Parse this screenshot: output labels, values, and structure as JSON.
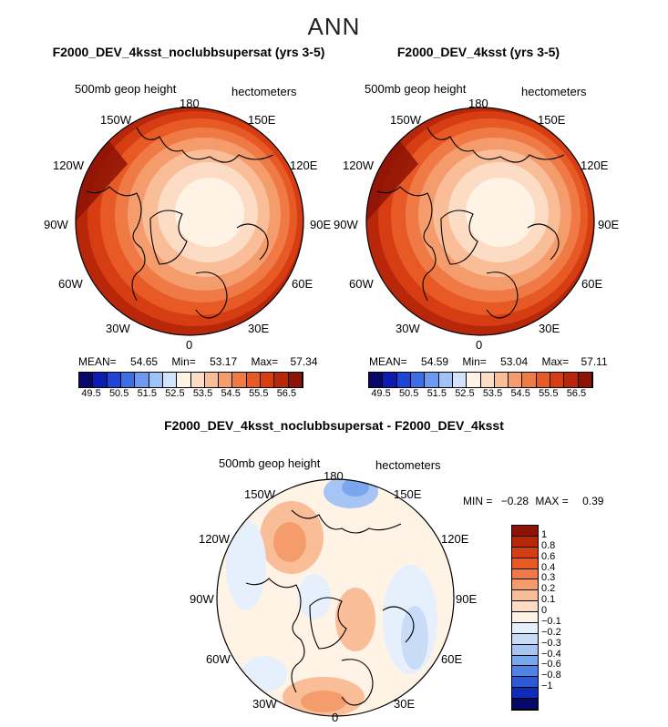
{
  "page": {
    "title": "ANN"
  },
  "panels": [
    {
      "id": "left",
      "title": "F2000_DEV_4ksst_noclubbsupersat (yrs 3-5)",
      "field_label": "500mb geop height",
      "units_label": "hectometers",
      "lon_labels": [
        "180",
        "150E",
        "120E",
        "90E",
        "60E",
        "30E",
        "0",
        "30W",
        "60W",
        "90W",
        "120W",
        "150W"
      ],
      "stats": {
        "mean_label": "MEAN=",
        "mean": "54.65",
        "min_label": "Min=",
        "min": "53.17",
        "max_label": "Max=",
        "max": "57.34"
      },
      "colorbar_ticks": [
        "49.5",
        "50.5",
        "51.5",
        "52.5",
        "53.5",
        "54.5",
        "55.5",
        "56.5"
      ]
    },
    {
      "id": "right",
      "title": "F2000_DEV_4ksst (yrs 3-5)",
      "field_label": "500mb geop height",
      "units_label": "hectometers",
      "lon_labels": [
        "180",
        "150E",
        "120E",
        "90E",
        "60E",
        "30E",
        "0",
        "30W",
        "60W",
        "90W",
        "120W",
        "150W"
      ],
      "stats": {
        "mean_label": "MEAN=",
        "mean": "54.59",
        "min_label": "Min=",
        "min": "53.04",
        "max_label": "Max=",
        "max": "57.11"
      },
      "colorbar_ticks": [
        "49.5",
        "50.5",
        "51.5",
        "52.5",
        "53.5",
        "54.5",
        "55.5",
        "56.5"
      ]
    },
    {
      "id": "diff",
      "title": "F2000_DEV_4ksst_noclubbsupersat - F2000_DEV_4ksst",
      "field_label": "500mb geop height",
      "units_label": "hectometers",
      "lon_labels": [
        "180",
        "150E",
        "120E",
        "90E",
        "60E",
        "30E",
        "0",
        "30W",
        "60W",
        "90W",
        "120W",
        "150W"
      ],
      "stats": {
        "min_label": "MIN =",
        "min": "−0.28",
        "max_label": "MAX =",
        "max": "0.39"
      },
      "colorbar_ticks": [
        "1",
        "0.8",
        "0.6",
        "0.4",
        "0.3",
        "0.2",
        "0.1",
        "0",
        "−0.1",
        "−0.2",
        "−0.3",
        "−0.4",
        "−0.6",
        "−0.8",
        "−1"
      ]
    }
  ],
  "colors": {
    "abs_scale": [
      "#08086b",
      "#0d1bb0",
      "#1f45d6",
      "#3c6ee6",
      "#6b9aef",
      "#9fc3f7",
      "#d2e4fb",
      "#fff3e6",
      "#fcdcc4",
      "#f9bd98",
      "#f59c6c",
      "#f07a45",
      "#e85a25",
      "#d63d12",
      "#b8270a",
      "#8c1305"
    ],
    "diff_scale": [
      "#8c1305",
      "#b8270a",
      "#d63d12",
      "#e85a25",
      "#f07a45",
      "#f59c6c",
      "#f9bd98",
      "#fcdcc4",
      "#fff3e6",
      "#e6f0fc",
      "#c8dcf8",
      "#a6c5f4",
      "#7aa6ee",
      "#4f84e6",
      "#2a5ad6",
      "#0e2cb8",
      "#08086b"
    ]
  }
}
